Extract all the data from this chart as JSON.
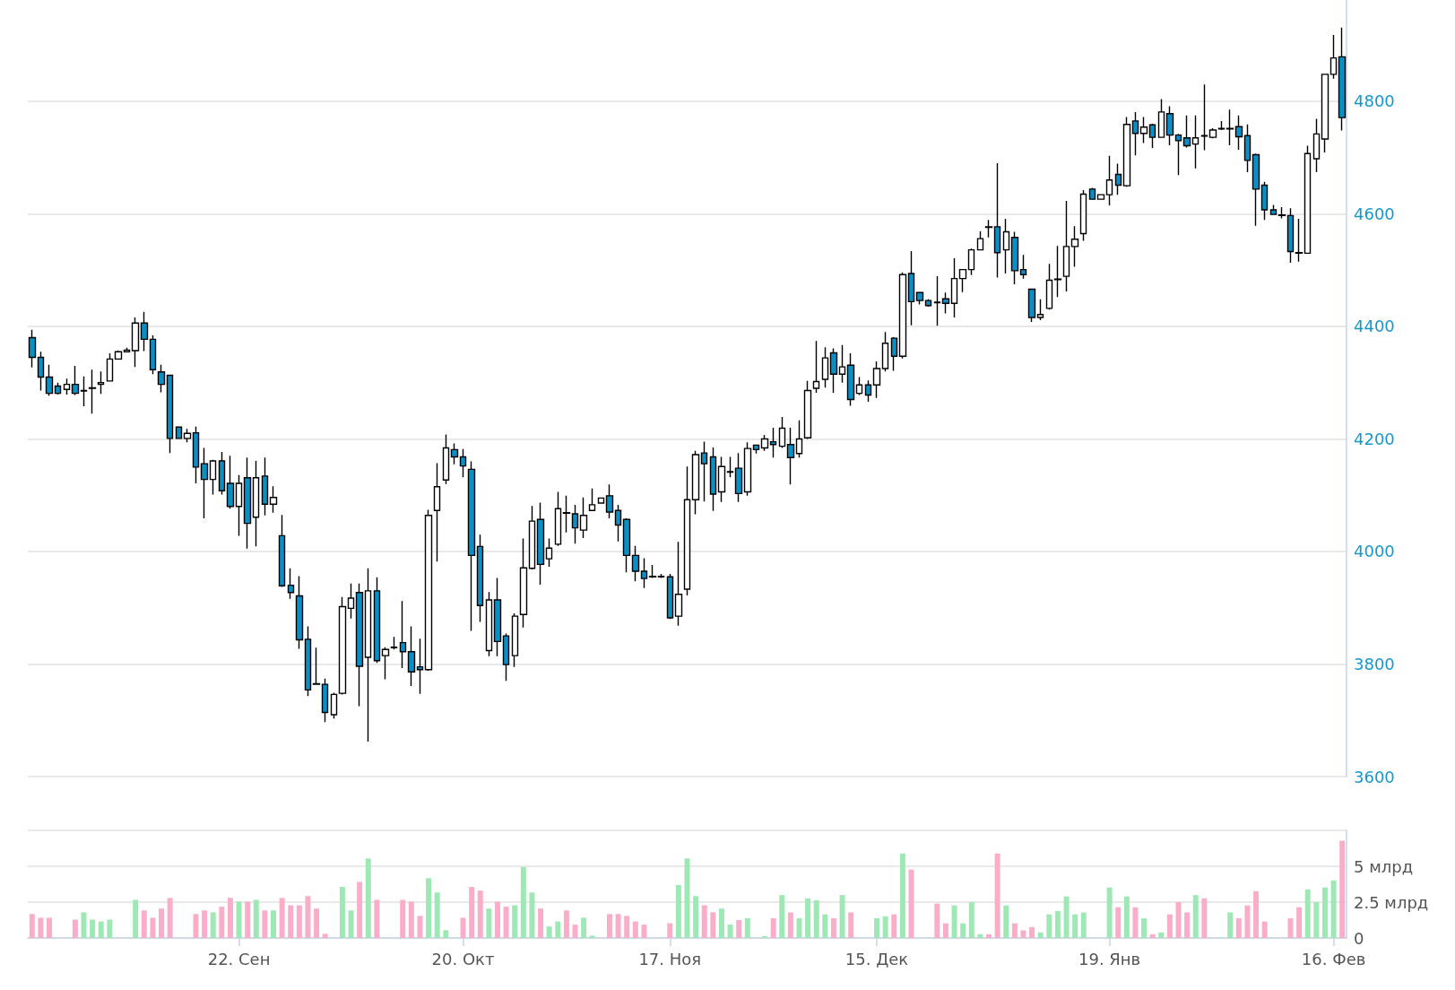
{
  "chart_data": [
    {
      "type": "candlestick",
      "colors": [
        "#0a8fc4",
        "#0a8fc4",
        "#0a8fc4",
        "#0a8fc4",
        "#ffffff",
        "#0a8fc4",
        "#ffffff",
        "#ffffff",
        "#ffffff",
        "#ffffff",
        "#ffffff",
        "#ffffff",
        "#ffffff",
        "#0a8fc4",
        "#0a8fc4",
        "#0a8fc4",
        "#0a8fc4",
        "#0a8fc4",
        "#ffffff",
        "#0a8fc4",
        "#0a8fc4",
        "#ffffff",
        "#0a8fc4",
        "#0a8fc4",
        "#ffffff",
        "#0a8fc4",
        "#ffffff",
        "#0a8fc4",
        "#ffffff",
        "#0a8fc4",
        "#0a8fc4",
        "#0a8fc4",
        "#0a8fc4",
        "#0a8fc4",
        "#0a8fc4",
        "#ffffff",
        "#ffffff",
        "#ffffff",
        "#0a8fc4",
        "#ffffff",
        "#0a8fc4",
        "#ffffff",
        "#ffffff",
        "#0a8fc4",
        "#0a8fc4",
        "#0a8fc4",
        "#ffffff",
        "#ffffff",
        "#ffffff",
        "#0a8fc4",
        "#0a8fc4",
        "#0a8fc4",
        "#0a8fc4",
        "#ffffff",
        "#0a8fc4",
        "#0a8fc4",
        "#ffffff",
        "#ffffff",
        "#ffffff",
        "#0a8fc4",
        "#ffffff",
        "#ffffff",
        "#0a8fc4",
        "#0a8fc4",
        "#ffffff",
        "#ffffff",
        "#ffffff",
        "#0a8fc4",
        "#0a8fc4",
        "#0a8fc4",
        "#0a8fc4",
        "#0a8fc4",
        "#ffffff",
        "#0a8fc4",
        "#0a8fc4",
        "#ffffff",
        "#ffffff",
        "#ffffff",
        "#0a8fc4",
        "#0a8fc4",
        "#ffffff",
        "#ffffff",
        "#0a8fc4",
        "#ffffff",
        "#0a8fc4",
        "#ffffff",
        "#0a8fc4",
        "#ffffff",
        "#0a8fc4",
        "#ffffff",
        "#ffffff",
        "#ffffff",
        "#ffffff",
        "#0a8fc4",
        "#ffffff",
        "#0a8fc4",
        "#ffffff",
        "#0a8fc4",
        "#ffffff",
        "#ffffff",
        "#0a8fc4",
        "#ffffff",
        "#0a8fc4",
        "#0a8fc4",
        "#0a8fc4",
        "#0a8fc4",
        "#0a8fc4",
        "#ffffff",
        "#ffffff",
        "#ffffff",
        "#ffffff",
        "#0a8fc4",
        "#0a8fc4",
        "#ffffff",
        "#0a8fc4",
        "#0a8fc4",
        "#0a8fc4",
        "#ffffff",
        "#ffffff",
        "#ffffff",
        "#ffffff",
        "#ffffff",
        "#ffffff",
        "#0a8fc4",
        "#ffffff",
        "#ffffff",
        "#0a8fc4",
        "#ffffff",
        "#0a8fc4",
        "#ffffff",
        "#0a8fc4",
        "#ffffff",
        "#0a8fc4",
        "#0a8fc4",
        "#0a8fc4",
        "#ffffff",
        "#0a8fc4",
        "#ffffff",
        "#ffffff",
        "#ffffff",
        "#0a8fc4",
        "#0a8fc4",
        "#0a8fc4",
        "#0a8fc4",
        "#0a8fc4",
        "#0a8fc4",
        "#0a8fc4",
        "#0a8fc4",
        "#ffffff",
        "#ffffff",
        "#ffffff",
        "#ffffff",
        "#0a8fc4"
      ],
      "ylim": [
        3600,
        4980
      ],
      "yticks": [
        3600,
        3800,
        4000,
        4200,
        4400,
        4600,
        4800
      ],
      "grid": "y",
      "tick_labels": "y",
      "categories": [
        null,
        null,
        null,
        null,
        null,
        null,
        null,
        null,
        null,
        null,
        null,
        null,
        null,
        null,
        null,
        null,
        null,
        null,
        null,
        null,
        null,
        null,
        null,
        null,
        null,
        null,
        null,
        null,
        null,
        null,
        null,
        null,
        null,
        null,
        null,
        null,
        null,
        null,
        null,
        null,
        null,
        null,
        null,
        null,
        null,
        null,
        null,
        null,
        null,
        null,
        null,
        null,
        null,
        null,
        null,
        null,
        null,
        null,
        null,
        null,
        null,
        null,
        null,
        null,
        null,
        null,
        null,
        null,
        null,
        null,
        null,
        null,
        null,
        null,
        null,
        null,
        null,
        null,
        null,
        null,
        null,
        null,
        null,
        null,
        null,
        null,
        null,
        null,
        null,
        null,
        null,
        null,
        null,
        null,
        null,
        null,
        null,
        null,
        null,
        null,
        null,
        null,
        null,
        null,
        null,
        null,
        null,
        null,
        null,
        null,
        null,
        null,
        null,
        null,
        null,
        null,
        null,
        null,
        null,
        null,
        null,
        null,
        null,
        null,
        null,
        null,
        null,
        null,
        null,
        null,
        null,
        null,
        null,
        null,
        null,
        null,
        null,
        null,
        null,
        null,
        null,
        null,
        null,
        null,
        null,
        null,
        null,
        null,
        null,
        null,
        null,
        null,
        null
      ],
      "ohlc": [
        [
          4380,
          4394,
          4327,
          4345
        ],
        [
          4345,
          4355,
          4286,
          4310
        ],
        [
          4310,
          4332,
          4277,
          4281
        ],
        [
          4294,
          4300,
          4279,
          4281
        ],
        [
          4288,
          4307,
          4279,
          4297
        ],
        [
          4297,
          4330,
          4278,
          4281
        ],
        [
          4285,
          4311,
          4258,
          4286
        ],
        [
          4290,
          4323,
          4245,
          4291
        ],
        [
          4297,
          4320,
          4280,
          4300
        ],
        [
          4303,
          4352,
          4303,
          4342
        ],
        [
          4342,
          4357,
          4341,
          4355
        ],
        [
          4355,
          4362,
          4354,
          4358
        ],
        [
          4357,
          4416,
          4328,
          4406
        ],
        [
          4406,
          4426,
          4356,
          4377
        ],
        [
          4377,
          4384,
          4315,
          4323
        ],
        [
          4319,
          4332,
          4283,
          4297
        ],
        [
          4313,
          4313,
          4175,
          4201
        ],
        [
          4221,
          4221,
          4200,
          4201
        ],
        [
          4201,
          4218,
          4194,
          4210
        ],
        [
          4211,
          4222,
          4121,
          4150
        ],
        [
          4156,
          4184,
          4059,
          4128
        ],
        [
          4128,
          4163,
          4101,
          4161
        ],
        [
          4161,
          4177,
          4101,
          4108
        ],
        [
          4121,
          4170,
          4076,
          4080
        ],
        [
          4080,
          4136,
          4028,
          4121
        ],
        [
          4131,
          4167,
          4005,
          4050
        ],
        [
          4061,
          4161,
          4009,
          4131
        ],
        [
          4134,
          4167,
          4064,
          4084
        ],
        [
          4084,
          4116,
          4069,
          4096
        ],
        [
          4028,
          4065,
          3937,
          3939
        ],
        [
          3940,
          3970,
          3916,
          3927
        ],
        [
          3921,
          3956,
          3827,
          3843
        ],
        [
          3844,
          3867,
          3743,
          3754
        ],
        [
          3765,
          3829,
          3763,
          3764
        ],
        [
          3764,
          3774,
          3697,
          3714
        ],
        [
          3710,
          3749,
          3703,
          3746
        ],
        [
          3748,
          3919,
          3746,
          3902
        ],
        [
          3899,
          3943,
          3881,
          3917
        ],
        [
          3927,
          3943,
          3725,
          3796
        ],
        [
          3812,
          3970,
          3662,
          3930
        ],
        [
          3930,
          3954,
          3802,
          3806
        ],
        [
          3815,
          3830,
          3773,
          3826
        ],
        [
          3829,
          3848,
          3826,
          3830
        ],
        [
          3838,
          3912,
          3793,
          3822
        ],
        [
          3822,
          3867,
          3761,
          3786
        ],
        [
          3795,
          3845,
          3747,
          3790
        ],
        [
          3790,
          4074,
          3788,
          4064
        ],
        [
          4073,
          4157,
          3982,
          4115
        ],
        [
          4127,
          4208,
          4120,
          4184
        ],
        [
          4181,
          4192,
          4155,
          4168
        ],
        [
          4168,
          4182,
          4132,
          4152
        ],
        [
          4146,
          4160,
          3859,
          3993
        ],
        [
          4009,
          4030,
          3875,
          3904
        ],
        [
          3824,
          3928,
          3814,
          3914
        ],
        [
          3914,
          3953,
          3814,
          3840
        ],
        [
          3850,
          3854,
          3770,
          3799
        ],
        [
          3815,
          3890,
          3795,
          3885
        ],
        [
          3888,
          4023,
          3865,
          3971
        ],
        [
          3970,
          4081,
          3968,
          4054
        ],
        [
          4057,
          4087,
          3941,
          3977
        ],
        [
          3987,
          4023,
          3973,
          4006
        ],
        [
          4013,
          4106,
          4010,
          4076
        ],
        [
          4069,
          4099,
          4034,
          4068
        ],
        [
          4067,
          4083,
          4014,
          4042
        ],
        [
          4038,
          4096,
          4024,
          4064
        ],
        [
          4073,
          4112,
          4072,
          4083
        ],
        [
          4086,
          4096,
          4085,
          4095
        ],
        [
          4099,
          4119,
          4059,
          4070
        ],
        [
          4073,
          4083,
          4018,
          4047
        ],
        [
          4057,
          4059,
          3963,
          3993
        ],
        [
          3993,
          4010,
          3947,
          3965
        ],
        [
          3965,
          3988,
          3935,
          3952
        ],
        [
          3955,
          3976,
          3953,
          3956
        ],
        [
          3956,
          3960,
          3953,
          3955
        ],
        [
          3955,
          3960,
          3880,
          3882
        ],
        [
          3885,
          4017,
          3868,
          3924
        ],
        [
          3933,
          4151,
          3922,
          4092
        ],
        [
          4092,
          4179,
          4066,
          4172
        ],
        [
          4175,
          4195,
          4089,
          4156
        ],
        [
          4168,
          4185,
          4072,
          4102
        ],
        [
          4106,
          4168,
          4088,
          4151
        ],
        [
          4141,
          4168,
          4132,
          4142
        ],
        [
          4148,
          4175,
          4088,
          4103
        ],
        [
          4106,
          4194,
          4099,
          4183
        ],
        [
          4189,
          4190,
          4174,
          4181
        ],
        [
          4184,
          4207,
          4179,
          4200
        ],
        [
          4195,
          4220,
          4167,
          4190
        ],
        [
          4187,
          4239,
          4184,
          4219
        ],
        [
          4190,
          4220,
          4119,
          4167
        ],
        [
          4174,
          4233,
          4167,
          4200
        ],
        [
          4202,
          4303,
          4200,
          4286
        ],
        [
          4290,
          4374,
          4282,
          4302
        ],
        [
          4306,
          4363,
          4291,
          4344
        ],
        [
          4353,
          4361,
          4282,
          4315
        ],
        [
          4315,
          4367,
          4300,
          4328
        ],
        [
          4331,
          4352,
          4259,
          4270
        ],
        [
          4281,
          4310,
          4278,
          4296
        ],
        [
          4296,
          4304,
          4266,
          4278
        ],
        [
          4296,
          4338,
          4273,
          4325
        ],
        [
          4325,
          4390,
          4320,
          4370
        ],
        [
          4379,
          4381,
          4321,
          4347
        ],
        [
          4347,
          4496,
          4343,
          4492
        ],
        [
          4494,
          4534,
          4402,
          4444
        ],
        [
          4460,
          4461,
          4439,
          4446
        ],
        [
          4446,
          4448,
          4435,
          4437
        ],
        [
          4443,
          4489,
          4401,
          4442
        ],
        [
          4449,
          4460,
          4423,
          4441
        ],
        [
          4441,
          4521,
          4416,
          4485
        ],
        [
          4485,
          4502,
          4461,
          4501
        ],
        [
          4501,
          4538,
          4491,
          4536
        ],
        [
          4536,
          4569,
          4535,
          4556
        ],
        [
          4577,
          4589,
          4558,
          4576
        ],
        [
          4577,
          4690,
          4487,
          4531
        ],
        [
          4536,
          4591,
          4494,
          4568
        ],
        [
          4558,
          4568,
          4475,
          4499
        ],
        [
          4501,
          4527,
          4485,
          4492
        ],
        [
          4466,
          4466,
          4408,
          4416
        ],
        [
          4416,
          4448,
          4411,
          4421
        ],
        [
          4432,
          4511,
          4430,
          4482
        ],
        [
          4483,
          4543,
          4452,
          4484
        ],
        [
          4489,
          4623,
          4462,
          4542
        ],
        [
          4542,
          4578,
          4506,
          4555
        ],
        [
          4565,
          4642,
          4552,
          4635
        ],
        [
          4644,
          4646,
          4625,
          4626
        ],
        [
          4626,
          4635,
          4625,
          4634
        ],
        [
          4634,
          4703,
          4615,
          4660
        ],
        [
          4670,
          4689,
          4634,
          4651
        ],
        [
          4650,
          4772,
          4648,
          4759
        ],
        [
          4765,
          4781,
          4704,
          4743
        ],
        [
          4743,
          4772,
          4726,
          4754
        ],
        [
          4758,
          4760,
          4717,
          4736
        ],
        [
          4736,
          4804,
          4735,
          4781
        ],
        [
          4778,
          4791,
          4722,
          4740
        ],
        [
          4740,
          4742,
          4669,
          4730
        ],
        [
          4735,
          4775,
          4718,
          4721
        ],
        [
          4724,
          4775,
          4681,
          4735
        ],
        [
          4739,
          4830,
          4713,
          4738
        ],
        [
          4736,
          4752,
          4734,
          4749
        ],
        [
          4751,
          4765,
          4749,
          4752
        ],
        [
          4751,
          4785,
          4722,
          4752
        ],
        [
          4755,
          4775,
          4714,
          4737
        ],
        [
          4739,
          4759,
          4674,
          4695
        ],
        [
          4705,
          4707,
          4579,
          4644
        ],
        [
          4651,
          4657,
          4589,
          4607
        ],
        [
          4607,
          4616,
          4598,
          4599
        ],
        [
          4598,
          4612,
          4592,
          4597
        ],
        [
          4597,
          4610,
          4513,
          4533
        ],
        [
          4531,
          4591,
          4515,
          4530
        ],
        [
          4530,
          4721,
          4529,
          4707
        ],
        [
          4698,
          4769,
          4674,
          4742
        ],
        [
          4733,
          4849,
          4709,
          4848
        ],
        [
          4848,
          4918,
          4840,
          4877
        ],
        [
          4879,
          4931,
          4748,
          4771
        ]
      ]
    },
    {
      "type": "bar",
      "ylim": [
        0,
        7.5
      ],
      "yticks": [
        0,
        {
          "value": 2.5,
          "label": "2.5 млрд"
        },
        {
          "value": 5,
          "label": "5 млрд"
        },
        {
          "value": 7.5,
          "label": null
        }
      ],
      "grid": "y",
      "categories": [
        null,
        null,
        null,
        null,
        null,
        null,
        null,
        null,
        null,
        null,
        null,
        null,
        null,
        null,
        null,
        null,
        null,
        null,
        null,
        null,
        null,
        null,
        null,
        null,
        "22. Сен",
        null,
        null,
        null,
        null,
        null,
        null,
        null,
        null,
        null,
        null,
        null,
        null,
        null,
        null,
        null,
        null,
        null,
        null,
        null,
        null,
        null,
        null,
        null,
        null,
        null,
        "20. Окт",
        null,
        null,
        null,
        null,
        null,
        null,
        null,
        null,
        null,
        null,
        null,
        null,
        null,
        null,
        null,
        null,
        null,
        null,
        null,
        null,
        null,
        null,
        null,
        "17. Ноя",
        null,
        null,
        null,
        null,
        null,
        null,
        null,
        null,
        null,
        null,
        null,
        null,
        null,
        null,
        null,
        null,
        null,
        null,
        null,
        null,
        null,
        null,
        null,
        "15. Дек",
        null,
        null,
        null,
        null,
        null,
        null,
        null,
        null,
        null,
        null,
        null,
        null,
        null,
        null,
        null,
        null,
        null,
        null,
        null,
        null,
        null,
        null,
        null,
        null,
        null,
        null,
        "19. Янв",
        null,
        null,
        null,
        null,
        null,
        null,
        null,
        null,
        null,
        null,
        null,
        null,
        null,
        null,
        null,
        null,
        null,
        null,
        null,
        null,
        null,
        null,
        null,
        null,
        null,
        "16. Фев",
        null
      ],
      "values": [
        1.67,
        1.41,
        1.41,
        null,
        null,
        1.28,
        1.79,
        1.28,
        1.15,
        1.28,
        null,
        null,
        2.66,
        1.92,
        1.41,
        2.05,
        2.79,
        null,
        null,
        1.67,
        1.92,
        1.79,
        2.18,
        2.79,
        2.53,
        2.53,
        2.66,
        1.92,
        1.92,
        2.79,
        2.28,
        2.28,
        2.92,
        2.05,
        0.29,
        null,
        3.56,
        1.92,
        3.91,
        5.54,
        2.66,
        null,
        null,
        2.66,
        2.53,
        1.54,
        4.17,
        3.17,
        0.54,
        null,
        1.41,
        3.56,
        3.3,
        2.05,
        2.53,
        2.18,
        2.28,
        4.94,
        3.17,
        2.05,
        0.8,
        1.15,
        1.92,
        0.93,
        1.41,
        0.16,
        null,
        1.67,
        1.67,
        1.54,
        1.15,
        0.93,
        null,
        null,
        1.03,
        3.69,
        5.54,
        2.92,
        2.28,
        1.79,
        2.05,
        0.93,
        1.25,
        1.38,
        null,
        0.13,
        1.38,
        2.99,
        1.78,
        1.38,
        2.76,
        2.63,
        1.65,
        1.38,
        2.99,
        1.78,
        null,
        null,
        1.38,
        1.51,
        1.65,
        5.89,
        4.77,
        null,
        null,
        2.4,
        1.02,
        2.27,
        1.02,
        2.5,
        0.26,
        0.26,
        5.89,
        2.27,
        1.02,
        0.53,
        0.76,
        0.39,
        1.65,
        1.88,
        2.9,
        1.65,
        1.78,
        null,
        null,
        3.52,
        2.14,
        2.9,
        2.14,
        1.38,
        0.26,
        0.39,
        1.65,
        2.5,
        1.78,
        2.99,
        2.76,
        null,
        null,
        1.78,
        1.38,
        2.27,
        3.26,
        1.15,
        null,
        null,
        1.38,
        2.14,
        3.39,
        2.5,
        3.52,
        4.01,
        6.78
      ],
      "colors": [
        "#f9adc8",
        "#f9adc8",
        "#f9adc8",
        null,
        null,
        "#f9adc8",
        "#9de8b4",
        "#9de8b4",
        "#9de8b4",
        "#9de8b4",
        null,
        null,
        "#9de8b4",
        "#f9adc8",
        "#f9adc8",
        "#f9adc8",
        "#f9adc8",
        null,
        null,
        "#f9adc8",
        "#f9adc8",
        "#9de8b4",
        "#f9adc8",
        "#f9adc8",
        "#9de8b4",
        "#f9adc8",
        "#9de8b4",
        "#f9adc8",
        "#9de8b4",
        "#f9adc8",
        "#f9adc8",
        "#f9adc8",
        "#f9adc8",
        "#f9adc8",
        "#f9adc8",
        null,
        "#9de8b4",
        "#9de8b4",
        "#f9adc8",
        "#9de8b4",
        "#f9adc8",
        null,
        null,
        "#f9adc8",
        "#f9adc8",
        "#f9adc8",
        "#9de8b4",
        "#9de8b4",
        "#9de8b4",
        null,
        "#f9adc8",
        "#f9adc8",
        "#f9adc8",
        "#9de8b4",
        "#f9adc8",
        "#f9adc8",
        "#9de8b4",
        "#9de8b4",
        "#9de8b4",
        "#f9adc8",
        "#9de8b4",
        "#9de8b4",
        "#f9adc8",
        "#f9adc8",
        "#9de8b4",
        "#9de8b4",
        null,
        "#f9adc8",
        "#f9adc8",
        "#f9adc8",
        "#f9adc8",
        "#f9adc8",
        null,
        null,
        "#f9adc8",
        "#9de8b4",
        "#9de8b4",
        "#9de8b4",
        "#f9adc8",
        "#f9adc8",
        "#9de8b4",
        "#9de8b4",
        "#f9adc8",
        "#9de8b4",
        null,
        "#9de8b4",
        "#f9adc8",
        "#9de8b4",
        "#f9adc8",
        "#9de8b4",
        "#9de8b4",
        "#9de8b4",
        "#9de8b4",
        "#f9adc8",
        "#9de8b4",
        "#f9adc8",
        null,
        null,
        "#9de8b4",
        "#9de8b4",
        "#f9adc8",
        "#9de8b4",
        "#f9adc8",
        null,
        null,
        "#f9adc8",
        "#f9adc8",
        "#9de8b4",
        "#9de8b4",
        "#9de8b4",
        "#9de8b4",
        "#f9adc8",
        "#f9adc8",
        "#9de8b4",
        "#f9adc8",
        "#f9adc8",
        "#f9adc8",
        "#9de8b4",
        "#9de8b4",
        "#9de8b4",
        "#9de8b4",
        "#9de8b4",
        "#9de8b4",
        null,
        null,
        "#9de8b4",
        "#f9adc8",
        "#9de8b4",
        "#f9adc8",
        "#9de8b4",
        "#f9adc8",
        "#9de8b4",
        "#f9adc8",
        "#f9adc8",
        "#f9adc8",
        "#9de8b4",
        "#f9adc8",
        null,
        null,
        "#9de8b4",
        "#f9adc8",
        "#f9adc8",
        "#f9adc8",
        "#f9adc8",
        null,
        null,
        "#f9adc8",
        "#f9adc8",
        "#9de8b4",
        "#9de8b4",
        "#9de8b4",
        "#9de8b4",
        "#f9adc8"
      ]
    }
  ]
}
